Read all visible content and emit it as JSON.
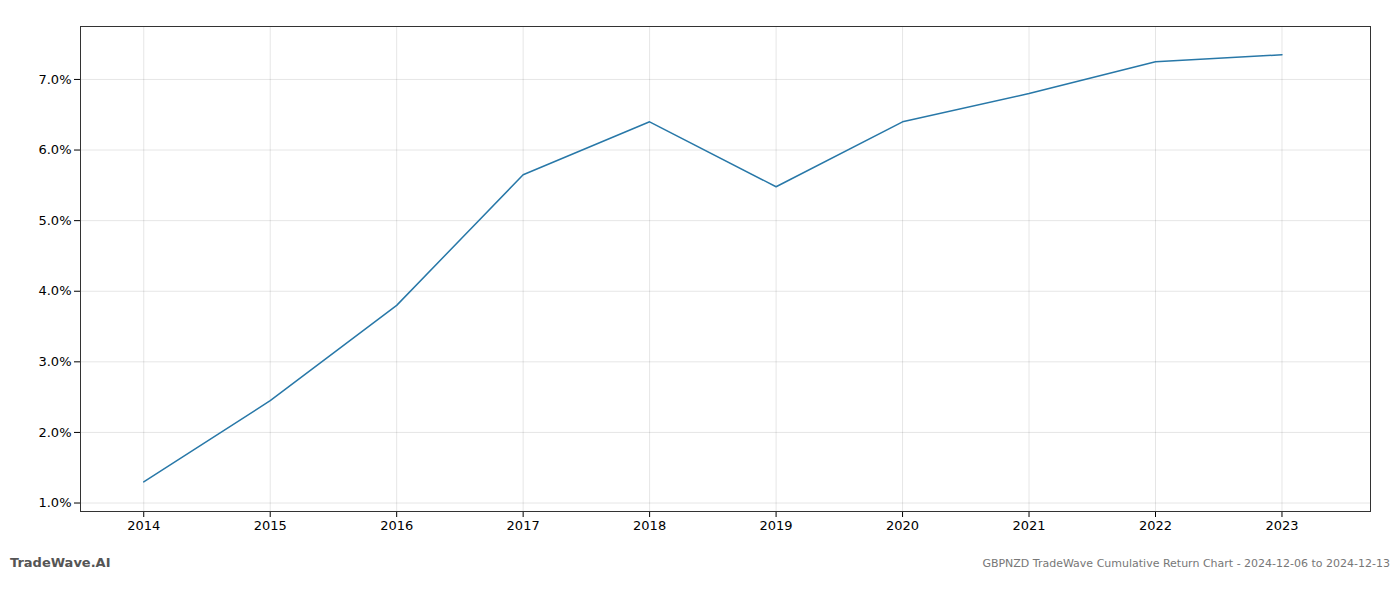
{
  "chart_data": {
    "type": "line",
    "title": "GBPNZD TradeWave Cumulative Return Chart - 2024-12-06 to 2024-12-13",
    "annotations": [
      "TradeWave.AI"
    ],
    "x": [
      2014,
      2015,
      2016,
      2017,
      2018,
      2019,
      2020,
      2021,
      2022,
      2023
    ],
    "values": [
      1.3,
      2.45,
      3.8,
      5.65,
      6.4,
      5.48,
      6.4,
      6.8,
      7.25,
      7.35
    ],
    "color": "#2878a8",
    "xlim": [
      2013.5,
      2023.7
    ],
    "ylim": [
      0.88,
      7.75
    ],
    "xticks": [
      2014,
      2015,
      2016,
      2017,
      2018,
      2019,
      2020,
      2021,
      2022,
      2023
    ],
    "yticks": [
      {
        "value": 1.0,
        "label": "1.0%"
      },
      {
        "value": 2.0,
        "label": "2.0%"
      },
      {
        "value": 3.0,
        "label": "3.0%"
      },
      {
        "value": 4.0,
        "label": "4.0%"
      },
      {
        "value": 5.0,
        "label": "5.0%"
      },
      {
        "value": 6.0,
        "label": "6.0%"
      },
      {
        "value": 7.0,
        "label": "7.0%"
      }
    ],
    "grid": true
  }
}
